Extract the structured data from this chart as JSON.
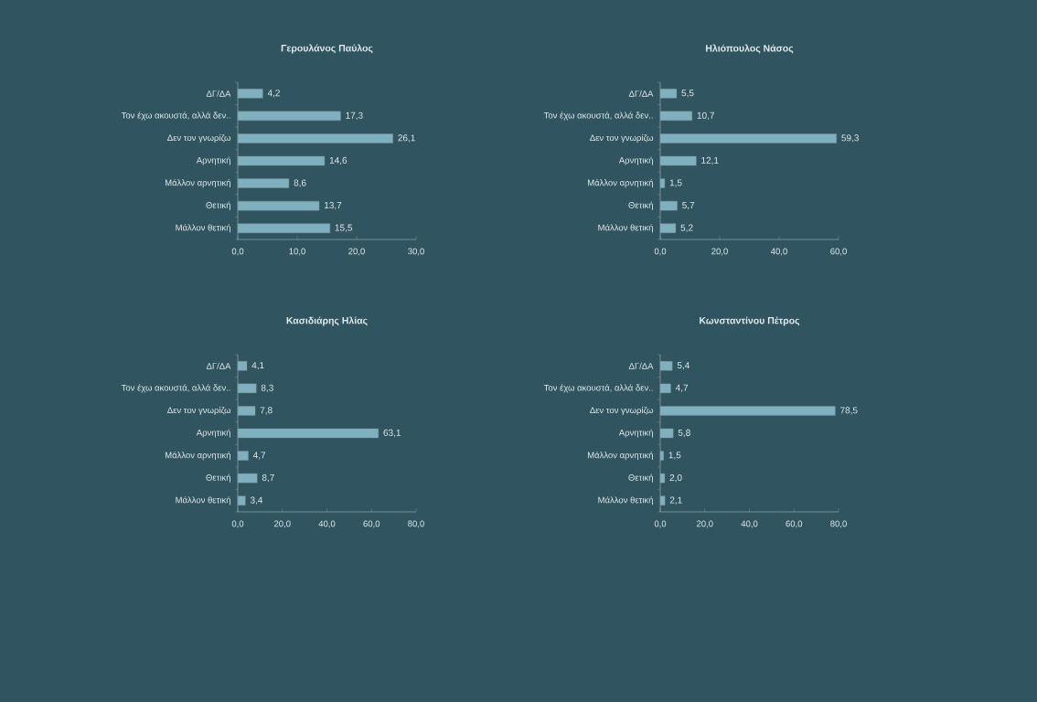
{
  "chart_data": [
    {
      "type": "bar",
      "orientation": "horizontal",
      "title": "Γερουλάνος Παύλος",
      "categories": [
        "ΔΓ/ΔΑ",
        "Τον έχω ακουστά, αλλά δεν..",
        "Δεν τον γνωρίζω",
        "Αρνητική",
        "Μάλλον αρνητική",
        "Θετική",
        "Μάλλον θετική"
      ],
      "values": [
        4.2,
        17.3,
        26.1,
        14.6,
        8.6,
        13.7,
        15.5
      ],
      "value_labels": [
        "4,2",
        "17,3",
        "26,1",
        "14,6",
        "8,6",
        "13,7",
        "15,5"
      ],
      "color": "#7fb0bf",
      "xlim": [
        0,
        30
      ],
      "xticks": [
        {
          "value": 0,
          "label": "0,0"
        },
        {
          "value": 10,
          "label": "10,0"
        },
        {
          "value": 20,
          "label": "20,0"
        },
        {
          "value": 30,
          "label": "30,0"
        }
      ]
    },
    {
      "type": "bar",
      "orientation": "horizontal",
      "title": "Ηλιόπουλος Νάσος",
      "categories": [
        "ΔΓ/ΔΑ",
        "Τον έχω ακουστά, αλλά δεν..",
        "Δεν τον γνωρίζω",
        "Αρνητική",
        "Μάλλον αρνητική",
        "Θετική",
        "Μάλλον θετική"
      ],
      "values": [
        5.5,
        10.7,
        59.3,
        12.1,
        1.5,
        5.7,
        5.2
      ],
      "value_labels": [
        "5,5",
        "10,7",
        "59,3",
        "12,1",
        "1,5",
        "5,7",
        "5,2"
      ],
      "color": "#7fb0bf",
      "xlim": [
        0,
        60
      ],
      "xticks": [
        {
          "value": 0,
          "label": "0,0"
        },
        {
          "value": 20,
          "label": "20,0"
        },
        {
          "value": 40,
          "label": "40,0"
        },
        {
          "value": 60,
          "label": "60,0"
        }
      ]
    },
    {
      "type": "bar",
      "orientation": "horizontal",
      "title": "Κασιδιάρης Ηλίας",
      "categories": [
        "ΔΓ/ΔΑ",
        "Τον έχω ακουστά, αλλά δεν..",
        "Δεν τον γνωρίζω",
        "Αρνητική",
        "Μάλλον αρνητική",
        "Θετική",
        "Μάλλον θετική"
      ],
      "values": [
        4.1,
        8.3,
        7.8,
        63.1,
        4.7,
        8.7,
        3.4
      ],
      "value_labels": [
        "4,1",
        "8,3",
        "7,8",
        "63,1",
        "4,7",
        "8,7",
        "3,4"
      ],
      "color": "#7fb0bf",
      "xlim": [
        0,
        80
      ],
      "xticks": [
        {
          "value": 0,
          "label": "0,0"
        },
        {
          "value": 20,
          "label": "20,0"
        },
        {
          "value": 40,
          "label": "40,0"
        },
        {
          "value": 60,
          "label": "60,0"
        },
        {
          "value": 80,
          "label": "80,0"
        }
      ]
    },
    {
      "type": "bar",
      "orientation": "horizontal",
      "title": "Κωνσταντίνου Πέτρος",
      "categories": [
        "ΔΓ/ΔΑ",
        "Τον έχω ακουστά, αλλά δεν..",
        "Δεν τον γνωρίζω",
        "Αρνητική",
        "Μάλλον αρνητική",
        "Θετική",
        "Μάλλον θετική"
      ],
      "values": [
        5.4,
        4.7,
        78.5,
        5.8,
        1.5,
        2.0,
        2.1
      ],
      "value_labels": [
        "5,4",
        "4,7",
        "78,5",
        "5,8",
        "1,5",
        "2,0",
        "2,1"
      ],
      "color": "#7fb0bf",
      "xlim": [
        0,
        80
      ],
      "xticks": [
        {
          "value": 0,
          "label": "0,0"
        },
        {
          "value": 20,
          "label": "20,0"
        },
        {
          "value": 40,
          "label": "40,0"
        },
        {
          "value": 60,
          "label": "60,0"
        },
        {
          "value": 80,
          "label": "80,0"
        }
      ]
    }
  ]
}
